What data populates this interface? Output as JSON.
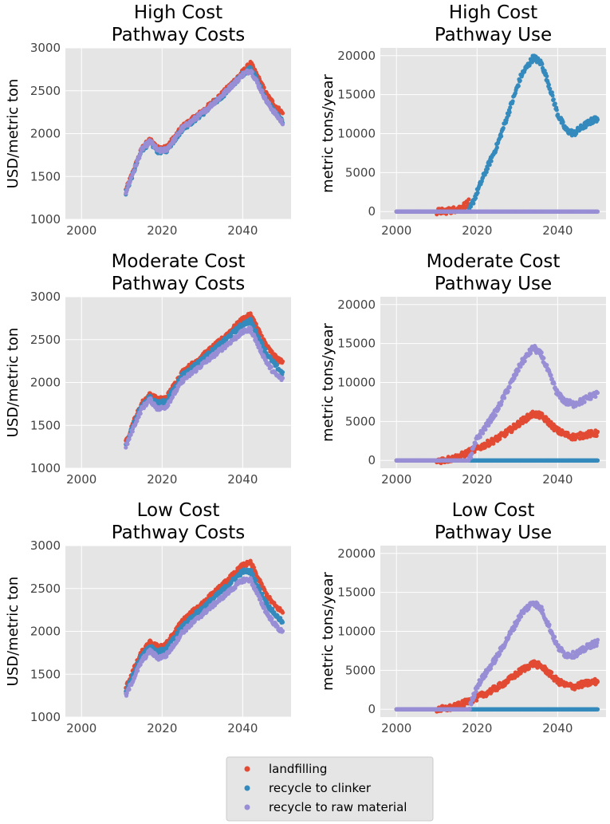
{
  "colors": {
    "landfilling": "#e24a33",
    "recycle_to_clinker": "#348abd",
    "recycle_to_raw_material": "#988ed5",
    "panel_bg": "#e5e5e5",
    "grid": "#ffffff"
  },
  "legend": {
    "placement": "bottom-center",
    "entries": [
      "landfilling",
      "recycle to clinker",
      "recycle to raw material"
    ]
  },
  "chart_data": [
    {
      "type": "scatter",
      "title": [
        "High Cost",
        "Pathway Costs"
      ],
      "xlabel": "",
      "ylabel": "USD/metric ton",
      "xlim": [
        1996,
        2052
      ],
      "ylim": [
        1000,
        3000
      ],
      "xticks": [
        2000,
        2020,
        2040
      ],
      "yticks": [
        1000,
        1500,
        2000,
        2500,
        3000
      ],
      "x": [
        2011,
        2013,
        2015,
        2017,
        2019,
        2021,
        2023,
        2025,
        2030,
        2035,
        2040,
        2042,
        2044,
        2046,
        2048,
        2050
      ],
      "series": [
        {
          "name": "landfilling",
          "values": [
            1340,
            1580,
            1830,
            1930,
            1830,
            1840,
            1950,
            2080,
            2260,
            2470,
            2720,
            2820,
            2640,
            2450,
            2330,
            2230
          ]
        },
        {
          "name": "recycle to clinker",
          "values": [
            1310,
            1560,
            1810,
            1900,
            1790,
            1800,
            1920,
            2050,
            2230,
            2440,
            2690,
            2770,
            2580,
            2380,
            2250,
            2130
          ]
        },
        {
          "name": "recycle to raw material",
          "values": [
            1320,
            1570,
            1820,
            1910,
            1800,
            1810,
            1930,
            2060,
            2240,
            2450,
            2690,
            2740,
            2560,
            2370,
            2240,
            2120
          ]
        }
      ]
    },
    {
      "type": "scatter",
      "title": [
        "High Cost",
        "Pathway Use"
      ],
      "xlabel": "",
      "ylabel": "metric tons/year",
      "xlim": [
        1996,
        2052
      ],
      "ylim": [
        -1000,
        21000
      ],
      "xticks": [
        2000,
        2020,
        2040
      ],
      "yticks": [
        0,
        5000,
        10000,
        15000,
        20000
      ],
      "x": [
        2000,
        2005,
        2010,
        2012,
        2014,
        2016,
        2018,
        2020,
        2022,
        2025,
        2028,
        2031,
        2034,
        2036,
        2038,
        2040,
        2042,
        2044,
        2046,
        2048,
        2050
      ],
      "series": [
        {
          "name": "landfilling",
          "values": [
            0,
            0,
            0,
            50,
            200,
            500,
            1200,
            null,
            null,
            null,
            null,
            null,
            null,
            null,
            null,
            null,
            null,
            null,
            null,
            null,
            null
          ]
        },
        {
          "name": "recycle to clinker",
          "values": [
            0,
            0,
            0,
            0,
            0,
            0,
            0,
            2500,
            5000,
            8500,
            13000,
            17500,
            19800,
            19000,
            16000,
            12500,
            10500,
            10000,
            10800,
            11500,
            12000
          ]
        },
        {
          "name": "recycle to raw material",
          "values": [
            0,
            0,
            0,
            0,
            0,
            0,
            0,
            0,
            0,
            0,
            0,
            0,
            0,
            0,
            0,
            0,
            0,
            0,
            0,
            0,
            0
          ]
        }
      ]
    },
    {
      "type": "scatter",
      "title": [
        "Moderate Cost",
        "Pathway Costs"
      ],
      "xlabel": "",
      "ylabel": "USD/metric ton",
      "xlim": [
        1996,
        2052
      ],
      "ylim": [
        1000,
        3000
      ],
      "xticks": [
        2000,
        2020,
        2040
      ],
      "yticks": [
        1000,
        1500,
        2000,
        2500,
        3000
      ],
      "x": [
        2011,
        2013,
        2015,
        2017,
        2019,
        2021,
        2023,
        2025,
        2030,
        2035,
        2040,
        2042,
        2044,
        2046,
        2048,
        2050
      ],
      "series": [
        {
          "name": "landfilling",
          "values": [
            1300,
            1550,
            1760,
            1860,
            1800,
            1820,
            1970,
            2120,
            2310,
            2510,
            2740,
            2790,
            2600,
            2420,
            2300,
            2230
          ]
        },
        {
          "name": "recycle to clinker",
          "values": [
            1280,
            1520,
            1730,
            1830,
            1760,
            1780,
            1930,
            2080,
            2270,
            2470,
            2680,
            2720,
            2520,
            2330,
            2210,
            2100
          ]
        },
        {
          "name": "recycle to raw material",
          "values": [
            1250,
            1490,
            1700,
            1800,
            1690,
            1720,
            1870,
            2020,
            2210,
            2400,
            2590,
            2620,
            2420,
            2230,
            2100,
            2030
          ]
        }
      ]
    },
    {
      "type": "scatter",
      "title": [
        "Moderate Cost",
        "Pathway Use"
      ],
      "xlabel": "",
      "ylabel": "metric tons/year",
      "xlim": [
        1996,
        2052
      ],
      "ylim": [
        -1000,
        21000
      ],
      "xticks": [
        2000,
        2020,
        2040
      ],
      "yticks": [
        0,
        5000,
        10000,
        15000,
        20000
      ],
      "x": [
        2000,
        2005,
        2010,
        2012,
        2014,
        2016,
        2018,
        2020,
        2022,
        2025,
        2028,
        2031,
        2034,
        2036,
        2038,
        2040,
        2042,
        2044,
        2046,
        2048,
        2050
      ],
      "series": [
        {
          "name": "landfilling",
          "values": [
            0,
            0,
            0,
            80,
            250,
            600,
            1100,
            1500,
            2000,
            2800,
            3800,
            5000,
            6000,
            5700,
            4800,
            3800,
            3300,
            3000,
            3200,
            3400,
            3500
          ]
        },
        {
          "name": "recycle to clinker",
          "values": [
            0,
            0,
            0,
            0,
            0,
            0,
            0,
            0,
            0,
            0,
            0,
            0,
            0,
            0,
            0,
            0,
            0,
            0,
            0,
            0,
            0
          ]
        },
        {
          "name": "recycle to raw material",
          "values": [
            0,
            0,
            0,
            0,
            0,
            0,
            0,
            2800,
            4200,
            6500,
            9500,
            12500,
            14500,
            13500,
            11000,
            8500,
            7500,
            7200,
            7600,
            8200,
            8600
          ]
        }
      ]
    },
    {
      "type": "scatter",
      "title": [
        "Low Cost",
        "Pathway Costs"
      ],
      "xlabel": "",
      "ylabel": "USD/metric ton",
      "xlim": [
        1996,
        2052
      ],
      "ylim": [
        1000,
        3000
      ],
      "xticks": [
        2000,
        2020,
        2040
      ],
      "yticks": [
        1000,
        1500,
        2000,
        2500,
        3000
      ],
      "x": [
        2011,
        2013,
        2015,
        2017,
        2019,
        2021,
        2023,
        2025,
        2030,
        2035,
        2040,
        2042,
        2044,
        2046,
        2048,
        2050
      ],
      "series": [
        {
          "name": "landfilling",
          "values": [
            1340,
            1560,
            1760,
            1870,
            1820,
            1850,
            1980,
            2120,
            2330,
            2540,
            2770,
            2800,
            2600,
            2420,
            2300,
            2220
          ]
        },
        {
          "name": "recycle to clinker",
          "values": [
            1300,
            1520,
            1720,
            1830,
            1760,
            1790,
            1920,
            2060,
            2270,
            2480,
            2700,
            2700,
            2500,
            2320,
            2200,
            2100
          ]
        },
        {
          "name": "recycle to raw material",
          "values": [
            1250,
            1460,
            1660,
            1770,
            1690,
            1720,
            1850,
            1990,
            2200,
            2400,
            2600,
            2600,
            2400,
            2210,
            2080,
            1980
          ]
        }
      ]
    },
    {
      "type": "scatter",
      "title": [
        "Low Cost",
        "Pathway Use"
      ],
      "xlabel": "",
      "ylabel": "metric tons/year",
      "xlim": [
        1996,
        2052
      ],
      "ylim": [
        -1000,
        21000
      ],
      "xticks": [
        2000,
        2020,
        2040
      ],
      "yticks": [
        0,
        5000,
        10000,
        15000,
        20000
      ],
      "x": [
        2000,
        2005,
        2010,
        2012,
        2014,
        2016,
        2018,
        2020,
        2022,
        2025,
        2028,
        2031,
        2034,
        2036,
        2038,
        2040,
        2042,
        2044,
        2046,
        2048,
        2050
      ],
      "series": [
        {
          "name": "landfilling",
          "values": [
            0,
            0,
            0,
            80,
            250,
            600,
            1100,
            1500,
            2000,
            2800,
            3800,
            5000,
            5900,
            5500,
            4600,
            3600,
            3100,
            2900,
            3200,
            3400,
            3600
          ]
        },
        {
          "name": "recycle to clinker",
          "values": [
            0,
            0,
            0,
            0,
            0,
            0,
            0,
            0,
            0,
            0,
            0,
            0,
            0,
            0,
            0,
            0,
            0,
            0,
            0,
            0,
            0
          ]
        },
        {
          "name": "recycle to raw material",
          "values": [
            0,
            0,
            0,
            0,
            0,
            0,
            0,
            3000,
            4500,
            6800,
            9500,
            12300,
            13800,
            12800,
            10500,
            8000,
            7000,
            7000,
            7500,
            8200,
            8600
          ]
        }
      ]
    }
  ]
}
